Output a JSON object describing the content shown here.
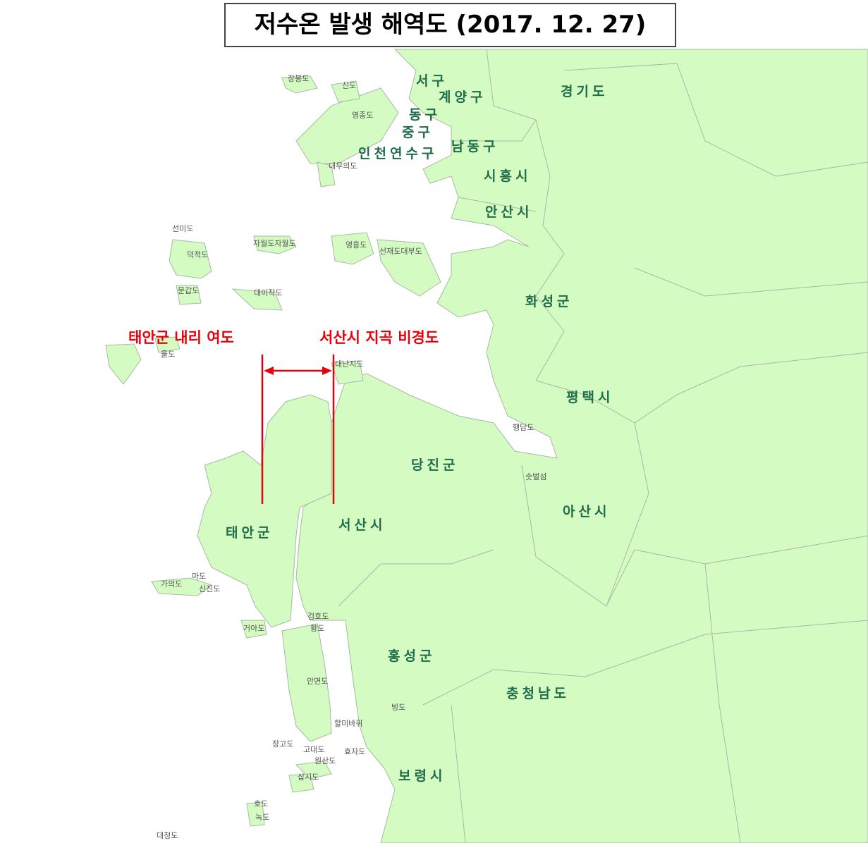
{
  "title": "저수온 발생 해역도 (2017. 12. 27)",
  "colors": {
    "land": "#d4fcc2",
    "boundary": "#a9b8a4",
    "sea": "#ffffff",
    "region_label": "#1f6b4a",
    "annotation": "#e8000b"
  },
  "regions": [
    {
      "name": "서구"
    },
    {
      "name": "계양구"
    },
    {
      "name": "경기도"
    },
    {
      "name": "동구"
    },
    {
      "name": "중구"
    },
    {
      "name": "인천연수구"
    },
    {
      "name": "남동구"
    },
    {
      "name": "시흥시"
    },
    {
      "name": "안산시"
    },
    {
      "name": "화성군"
    },
    {
      "name": "평택시"
    },
    {
      "name": "당진군"
    },
    {
      "name": "아산시"
    },
    {
      "name": "태안군"
    },
    {
      "name": "서산시"
    },
    {
      "name": "홍성군"
    },
    {
      "name": "충청남도"
    },
    {
      "name": "보령시"
    }
  ],
  "islands": [
    "장봉도",
    "신도",
    "영종도",
    "대무의도",
    "선미도",
    "덕적도",
    "자월도자월도",
    "영흥도",
    "선재도대부도",
    "문갑도",
    "대이작도",
    "대난지도",
    "행담도",
    "솟벌섬",
    "가의도",
    "마도",
    "신진도",
    "거아도",
    "검호도",
    "황도",
    "안면도",
    "빙도",
    "할미바위",
    "장고도",
    "고대도",
    "효자도",
    "원산도",
    "삽시도",
    "호도",
    "녹도",
    "대청도",
    "울도"
  ],
  "annotations": {
    "left_site": "태안군 내리 여도",
    "right_site": "서산시 지곡 비경도"
  }
}
